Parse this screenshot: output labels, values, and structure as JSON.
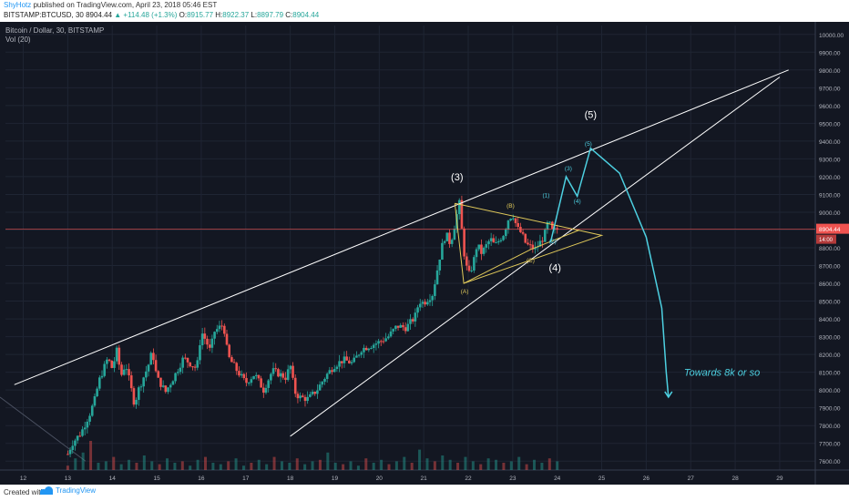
{
  "header": {
    "author": "ShyHotz",
    "published_text": "published on TradingView.com, April 23, 2018 05:46 EST",
    "symbol": "BITSTAMP:BTCUSD, 30",
    "last": "8904.44",
    "change": "▲ +114.48 (+1.3%)",
    "open_label": "O:",
    "open": "8915.77",
    "high_label": "H:",
    "high": "8922.37",
    "low_label": "L:",
    "low": "8897.79",
    "close_label": "C:",
    "close": "8904.44"
  },
  "legend": {
    "title": "Bitcoin / Dollar, 30, BITSTAMP",
    "volume": "Vol (20)"
  },
  "footer": {
    "created_with": "Created with",
    "brand": "TradingView"
  },
  "colors": {
    "background": "#131722",
    "up": "#26a69a",
    "down": "#ef5350",
    "wave_white": "#ffffff",
    "wave_yellow": "#e0c95a",
    "projection": "#4dd0e1",
    "price_line": "#ef5350"
  },
  "chart_data": {
    "type": "candlestick",
    "interval": "30",
    "x_ticks": [
      "12",
      "13",
      "14",
      "15",
      "16",
      "17",
      "18",
      "19",
      "20",
      "21",
      "22",
      "23",
      "24",
      "25",
      "26",
      "27",
      "28",
      "29"
    ],
    "y_ticks": [
      7600,
      7700,
      7800,
      7900,
      8000,
      8100,
      8200,
      8300,
      8400,
      8500,
      8600,
      8700,
      8800,
      8900,
      9000,
      9100,
      9200,
      9300,
      9400,
      9500,
      9600,
      9700,
      9800,
      9900,
      10000
    ],
    "ylim": [
      7550,
      10050
    ],
    "xlim": [
      11.6,
      29.8
    ],
    "current_price": "8904.44",
    "price_badge_small": "14:00",
    "price_path": [
      [
        13.0,
        7640
      ],
      [
        13.1,
        7700
      ],
      [
        13.3,
        7760
      ],
      [
        13.5,
        7870
      ],
      [
        13.6,
        7940
      ],
      [
        13.7,
        8050
      ],
      [
        13.9,
        8180
      ],
      [
        14.0,
        8120
      ],
      [
        14.1,
        8220
      ],
      [
        14.2,
        8080
      ],
      [
        14.3,
        8150
      ],
      [
        14.5,
        7920
      ],
      [
        14.6,
        8010
      ],
      [
        14.8,
        8130
      ],
      [
        14.9,
        8220
      ],
      [
        15.0,
        8070
      ],
      [
        15.2,
        7990
      ],
      [
        15.4,
        8080
      ],
      [
        15.6,
        8180
      ],
      [
        15.9,
        8120
      ],
      [
        16.0,
        8330
      ],
      [
        16.1,
        8280
      ],
      [
        16.2,
        8220
      ],
      [
        16.3,
        8330
      ],
      [
        16.5,
        8370
      ],
      [
        16.6,
        8190
      ],
      [
        16.8,
        8110
      ],
      [
        17.0,
        8040
      ],
      [
        17.2,
        8090
      ],
      [
        17.4,
        8000
      ],
      [
        17.6,
        8110
      ],
      [
        17.9,
        8070
      ],
      [
        18.0,
        8140
      ],
      [
        18.1,
        7990
      ],
      [
        18.2,
        7960
      ],
      [
        18.4,
        7950
      ],
      [
        18.6,
        8000
      ],
      [
        18.8,
        8080
      ],
      [
        19.0,
        8140
      ],
      [
        19.2,
        8170
      ],
      [
        19.4,
        8150
      ],
      [
        19.6,
        8230
      ],
      [
        19.8,
        8250
      ],
      [
        20.0,
        8270
      ],
      [
        20.2,
        8300
      ],
      [
        20.4,
        8360
      ],
      [
        20.6,
        8350
      ],
      [
        20.8,
        8410
      ],
      [
        20.9,
        8500
      ],
      [
        21.0,
        8490
      ],
      [
        21.2,
        8540
      ],
      [
        21.4,
        8800
      ],
      [
        21.5,
        8880
      ],
      [
        21.6,
        8820
      ],
      [
        21.8,
        9050
      ],
      [
        21.9,
        8780
      ],
      [
        22.0,
        8640
      ],
      [
        22.1,
        8700
      ],
      [
        22.2,
        8820
      ],
      [
        22.3,
        8770
      ],
      [
        22.5,
        8850
      ],
      [
        22.6,
        8810
      ],
      [
        22.8,
        8880
      ],
      [
        22.9,
        8960
      ],
      [
        23.0,
        8990
      ],
      [
        23.1,
        8910
      ],
      [
        23.2,
        8880
      ],
      [
        23.3,
        8820
      ],
      [
        23.5,
        8790
      ],
      [
        23.7,
        8860
      ],
      [
        23.8,
        8950
      ],
      [
        23.9,
        8890
      ],
      [
        24.0,
        8904
      ]
    ],
    "volumes": [
      3,
      8,
      12,
      20,
      5,
      6,
      9,
      4,
      7,
      5,
      10,
      6,
      4,
      8,
      5,
      6,
      3,
      7,
      9,
      5,
      4,
      6,
      8,
      3,
      5,
      7,
      4,
      9,
      6,
      5,
      8,
      4,
      6,
      7,
      12,
      5,
      4,
      6,
      3,
      8,
      5,
      7,
      4,
      6,
      9,
      5,
      14,
      8,
      6,
      10,
      7,
      5,
      9,
      6,
      4,
      8,
      7,
      5,
      6,
      9,
      4,
      7,
      5,
      8,
      6
    ],
    "wave_labels": [
      {
        "text": "(3)",
        "x": 21.75,
        "y": 9180,
        "color": "white"
      },
      {
        "text": "(4)",
        "x": 23.95,
        "y": 8670,
        "color": "white"
      },
      {
        "text": "(5)",
        "x": 24.75,
        "y": 9530,
        "color": "white"
      },
      {
        "text": "(A)",
        "x": 21.92,
        "y": 8545,
        "color": "yellow"
      },
      {
        "text": "(B)",
        "x": 22.95,
        "y": 9025,
        "color": "yellow"
      },
      {
        "text": "(C)",
        "x": 23.4,
        "y": 8718,
        "color": "yellow"
      },
      {
        "text": "(1)",
        "x": 23.75,
        "y": 9085,
        "color": "cyan"
      },
      {
        "text": "(2)",
        "x": 23.9,
        "y": 8825,
        "color": "cyan"
      },
      {
        "text": "(3)",
        "x": 24.25,
        "y": 9235,
        "color": "cyan"
      },
      {
        "text": "(4)",
        "x": 24.45,
        "y": 9050,
        "color": "cyan"
      },
      {
        "text": "(5)",
        "x": 24.7,
        "y": 9375,
        "color": "cyan"
      }
    ],
    "annotation": "Towards 8k or so",
    "wedge_upper": [
      [
        11.8,
        8030
      ],
      [
        29.2,
        9800
      ]
    ],
    "wedge_lower": [
      [
        18.0,
        7740
      ],
      [
        29.0,
        9760
      ]
    ],
    "abc_triangle": [
      [
        21.7,
        9050
      ],
      [
        25.0,
        8870
      ],
      [
        21.9,
        8600
      ]
    ],
    "abc_lines": [
      [
        21.9,
        8600
      ],
      [
        23.4,
        8790
      ],
      [
        24.5,
        8900
      ]
    ],
    "projection_path": [
      [
        23.85,
        8830
      ],
      [
        24.2,
        9200
      ],
      [
        24.45,
        9090
      ],
      [
        24.75,
        9360
      ],
      [
        25.4,
        9220
      ],
      [
        26.0,
        8860
      ],
      [
        26.35,
        8460
      ],
      [
        26.45,
        8100
      ],
      [
        26.5,
        7960
      ]
    ]
  }
}
